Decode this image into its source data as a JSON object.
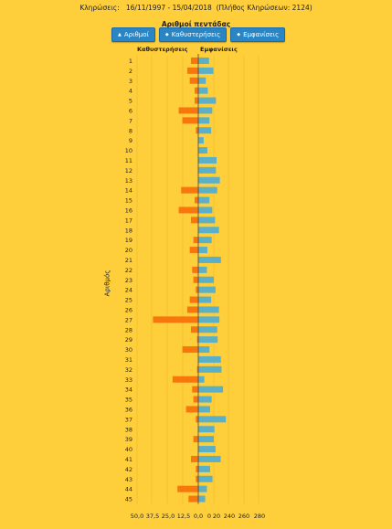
{
  "header": {
    "text": "Κληρώσεις:   16/11/1997 - 15/04/2018  (Πλήθος Κληρώσεων: 2124)"
  },
  "buttons": [
    {
      "label": "Αριθμοί",
      "icon": "sort-up-icon",
      "glyph": "▲"
    },
    {
      "label": "Καθυστερήσεις",
      "icon": "sort-updown-icon",
      "glyph": "◆"
    },
    {
      "label": "Εμφανίσεις",
      "icon": "sort-updown-icon",
      "glyph": "◆"
    }
  ],
  "colors": {
    "delay": "#F7770D",
    "appear": "#5BAFC6",
    "background": "#FFCE3B"
  },
  "chart_data": {
    "type": "bar",
    "title": "Αριθμοί πεντάδας",
    "left_header": "Καθυστερήσεις",
    "right_header": "Εμφανίσεις",
    "ylabel": "Αριθμός",
    "categories": [
      "1",
      "2",
      "3",
      "4",
      "5",
      "6",
      "7",
      "8",
      "9",
      "10",
      "11",
      "12",
      "13",
      "14",
      "15",
      "16",
      "17",
      "18",
      "19",
      "20",
      "21",
      "22",
      "23",
      "24",
      "25",
      "26",
      "27",
      "28",
      "29",
      "30",
      "31",
      "32",
      "33",
      "34",
      "35",
      "36",
      "37",
      "38",
      "39",
      "40",
      "41",
      "42",
      "43",
      "44",
      "45"
    ],
    "series": [
      {
        "name": "Καθυστερήσεις",
        "values": [
          6,
          9,
          7,
          3,
          3,
          16,
          13,
          2,
          0,
          0,
          0,
          0,
          0,
          14,
          3,
          16,
          6,
          0,
          4,
          7,
          0,
          5,
          4,
          2,
          7,
          9,
          37,
          6,
          1,
          13,
          0,
          1,
          21,
          5,
          4,
          10,
          2,
          0,
          4,
          0,
          6,
          2,
          2,
          17,
          8
        ]
      },
      {
        "name": "Εμφανίσεις",
        "values": [
          50,
          70,
          35,
          44,
          82,
          65,
          52,
          60,
          25,
          42,
          85,
          82,
          100,
          88,
          52,
          65,
          78,
          96,
          62,
          42,
          105,
          40,
          72,
          80,
          60,
          96,
          98,
          88,
          90,
          52,
          105,
          108,
          28,
          115,
          62,
          55,
          128,
          75,
          72,
          80,
          104,
          55,
          66,
          40,
          32
        ]
      }
    ],
    "x_ticks_left": [
      "50,0",
      "37,5",
      "25,0",
      "12,5",
      "0,0"
    ],
    "x_ticks_right": [
      "0",
      "20",
      "240",
      "260",
      "280"
    ],
    "left_range": [
      0,
      50
    ],
    "right_range": [
      0,
      280
    ]
  }
}
